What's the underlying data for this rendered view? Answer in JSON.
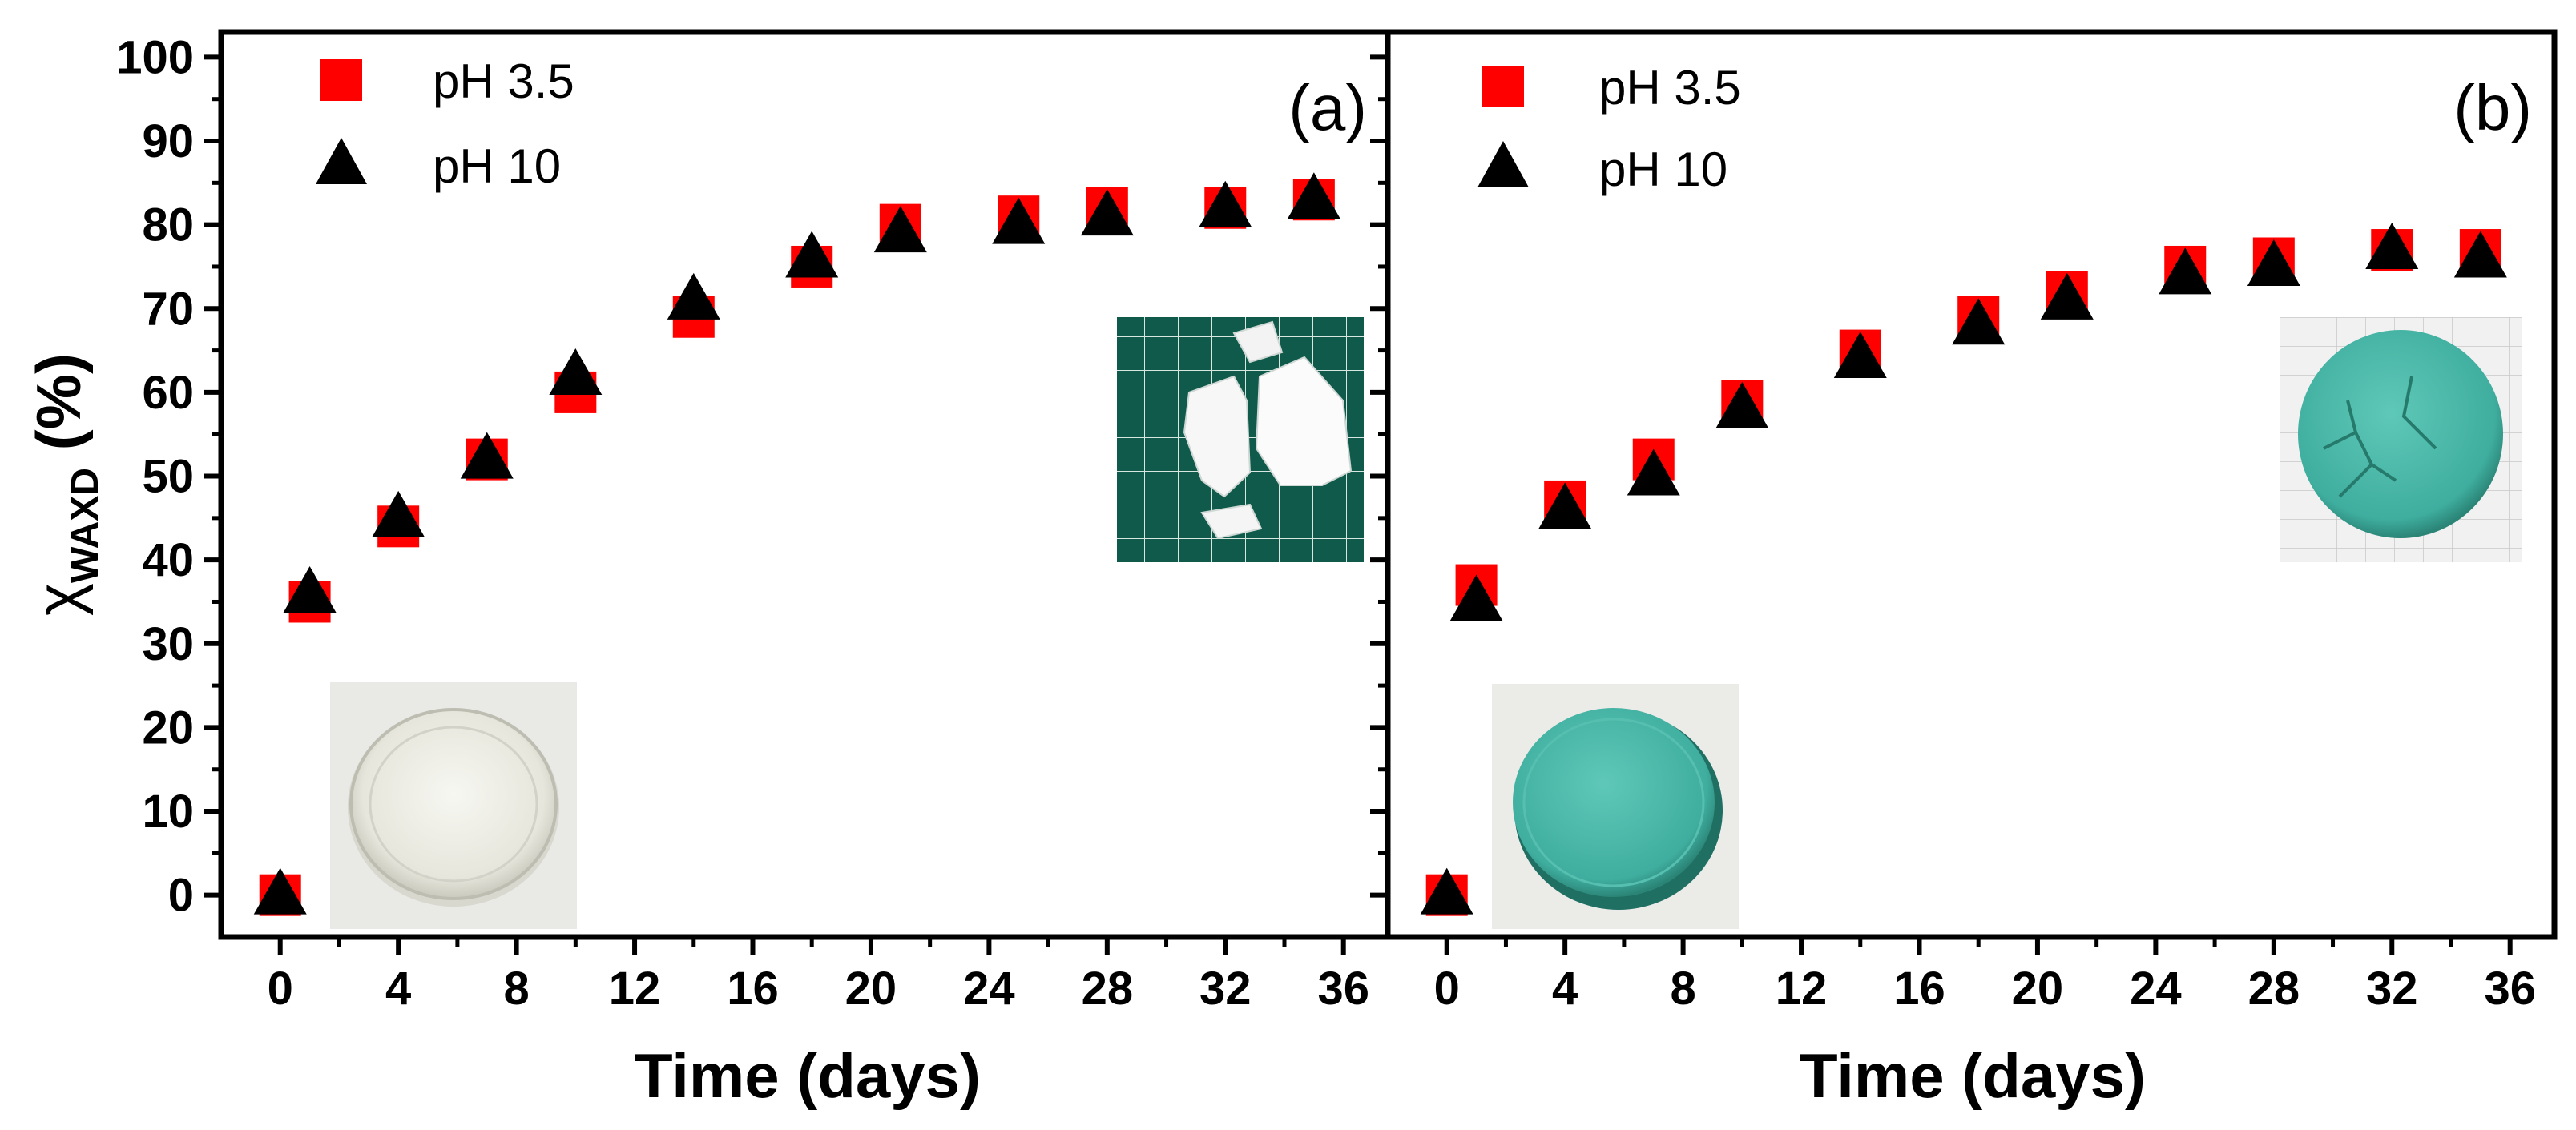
{
  "chart_data": [
    {
      "type": "scatter",
      "panel_label": "(a)",
      "xlabel": "Time (days)",
      "ylabel": "χ",
      "ylabel_sub": "WAXD",
      "ylabel_unit": " (%)",
      "xlim": [
        -2,
        37.5
      ],
      "ylim": [
        -5,
        103
      ],
      "xticks": [
        0,
        4,
        8,
        12,
        16,
        20,
        24,
        28,
        32,
        36
      ],
      "yticks": [
        0,
        10,
        20,
        30,
        40,
        50,
        60,
        70,
        80,
        90,
        100
      ],
      "legend_position": "top-left",
      "series": [
        {
          "name": "pH 3.5",
          "marker": "square",
          "color": "#ff0000",
          "x": [
            0,
            1,
            4,
            7,
            10,
            14,
            18,
            21,
            25,
            28,
            32,
            35
          ],
          "y": [
            0,
            35,
            44,
            52,
            60,
            69,
            75,
            80,
            81,
            82,
            82,
            83
          ]
        },
        {
          "name": "pH 10",
          "marker": "triangle",
          "color": "#000000",
          "x": [
            0,
            1,
            4,
            7,
            10,
            14,
            18,
            21,
            25,
            28,
            32,
            35
          ],
          "y": [
            0,
            36,
            45,
            52,
            62,
            71,
            76,
            79,
            80,
            81,
            82,
            83
          ]
        }
      ],
      "insets": [
        {
          "name": "clear-disc-photo",
          "description_icon": "photo-clear-disc-icon"
        },
        {
          "name": "white-fragments-photo",
          "description_icon": "photo-fragments-icon"
        }
      ]
    },
    {
      "type": "scatter",
      "panel_label": "(b)",
      "xlabel": "Time (days)",
      "xlim": [
        -2,
        37.5
      ],
      "ylim": [
        -5,
        103
      ],
      "xticks": [
        0,
        4,
        8,
        12,
        16,
        20,
        24,
        28,
        32,
        36
      ],
      "legend_position": "top-left",
      "series": [
        {
          "name": "pH 3.5",
          "marker": "square",
          "color": "#ff0000",
          "x": [
            0,
            1,
            4,
            7,
            10,
            14,
            18,
            21,
            25,
            28,
            32,
            35
          ],
          "y": [
            0,
            37,
            47,
            52,
            59,
            65,
            69,
            72,
            75,
            76,
            77,
            77
          ]
        },
        {
          "name": "pH 10",
          "marker": "triangle",
          "color": "#000000",
          "x": [
            0,
            1,
            4,
            7,
            10,
            14,
            18,
            21,
            25,
            28,
            32,
            35
          ],
          "y": [
            0,
            35,
            46,
            50,
            58,
            64,
            68,
            71,
            74,
            75,
            77,
            76
          ]
        }
      ],
      "insets": [
        {
          "name": "teal-disc-photo",
          "description_icon": "photo-teal-disc-icon"
        },
        {
          "name": "cracked-teal-disc-photo",
          "description_icon": "photo-cracked-disc-icon"
        }
      ]
    }
  ]
}
